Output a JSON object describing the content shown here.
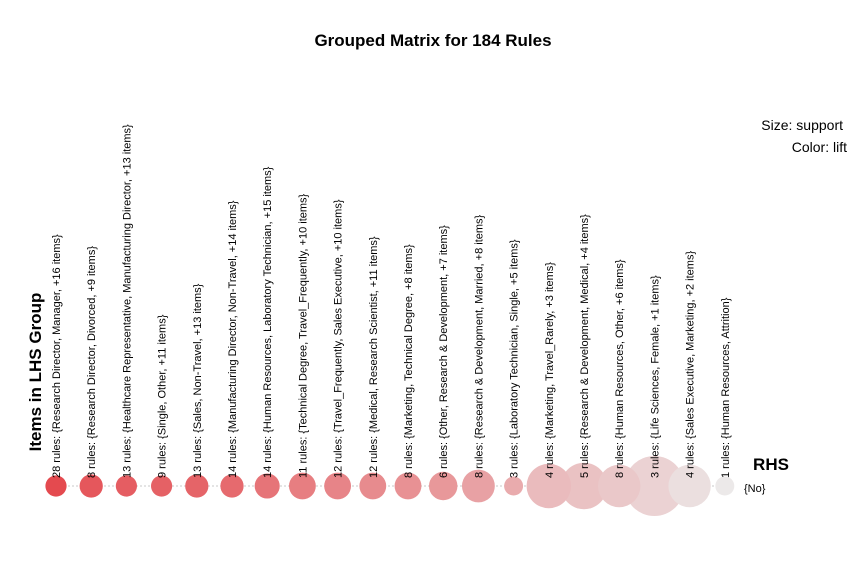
{
  "chart_data": {
    "type": "scatter",
    "title": "Grouped Matrix for 184 Rules",
    "legend": {
      "size": "Size: support",
      "color": "Color: lift"
    },
    "xlabel": "Items in LHS Group",
    "ylabel": "RHS",
    "rhs_items": [
      "{No}"
    ],
    "groups": [
      {
        "label": "28 rules: {Research Director, Manager, +16 items}",
        "rules": 28,
        "support": 0.05,
        "lift": 1.0
      },
      {
        "label": "8 rules: {Research Director, Divorced, +9 items}",
        "rules": 8,
        "support": 0.06,
        "lift": 0.92
      },
      {
        "label": "13 rules: {Healthcare Representative, Manufacturing Director, +13 items}",
        "rules": 13,
        "support": 0.05,
        "lift": 0.88
      },
      {
        "label": "9 rules: {Single, Other, +11 items}",
        "rules": 9,
        "support": 0.05,
        "lift": 0.86
      },
      {
        "label": "13 rules: {Sales, Non-Travel, +13 items}",
        "rules": 13,
        "support": 0.06,
        "lift": 0.84
      },
      {
        "label": "14 rules: {Manufacturing Director, Non-Travel, +14 items}",
        "rules": 14,
        "support": 0.06,
        "lift": 0.8
      },
      {
        "label": "14 rules: {Human Resources, Laboratory Technician, +15 items}",
        "rules": 14,
        "support": 0.07,
        "lift": 0.74
      },
      {
        "label": "11 rules: {Technical Degree, Travel_Frequently, +10 items}",
        "rules": 11,
        "support": 0.08,
        "lift": 0.68
      },
      {
        "label": "12 rules: {Travel_Frequently, Sales Executive, +10 items}",
        "rules": 12,
        "support": 0.08,
        "lift": 0.64
      },
      {
        "label": "12 rules: {Medical, Research Scientist, +11 items}",
        "rules": 12,
        "support": 0.08,
        "lift": 0.6
      },
      {
        "label": "8 rules: {Marketing, Technical Degree, +8 items}",
        "rules": 8,
        "support": 0.08,
        "lift": 0.56
      },
      {
        "label": "6 rules: {Other, Research & Development, +7 items}",
        "rules": 6,
        "support": 0.09,
        "lift": 0.52
      },
      {
        "label": "8 rules: {Research & Development, Married, +8 items}",
        "rules": 8,
        "support": 0.12,
        "lift": 0.46
      },
      {
        "label": "3 rules: {Laboratory Technician, Single, +5 items}",
        "rules": 3,
        "support": 0.04,
        "lift": 0.4
      },
      {
        "label": "4 rules: {Marketing, Travel_Rarely, +3 items}",
        "rules": 4,
        "support": 0.22,
        "lift": 0.3
      },
      {
        "label": "5 rules: {Research & Development, Medical, +4 items}",
        "rules": 5,
        "support": 0.24,
        "lift": 0.26
      },
      {
        "label": "8 rules: {Human Resources, Other, +6 items}",
        "rules": 8,
        "support": 0.2,
        "lift": 0.22
      },
      {
        "label": "3 rules: {Life Sciences, Female, +1 items}",
        "rules": 3,
        "support": 0.4,
        "lift": 0.16
      },
      {
        "label": "4 rules: {Sales Executive, Marketing, +2 items}",
        "rules": 4,
        "support": 0.2,
        "lift": 0.08
      },
      {
        "label": "1 rules: {Human Resources, Attrition}",
        "rules": 1,
        "support": 0.04,
        "lift": 0.02
      }
    ],
    "color_scale": {
      "high": "#e44a4f",
      "low": "#ececec"
    },
    "grid": false
  }
}
